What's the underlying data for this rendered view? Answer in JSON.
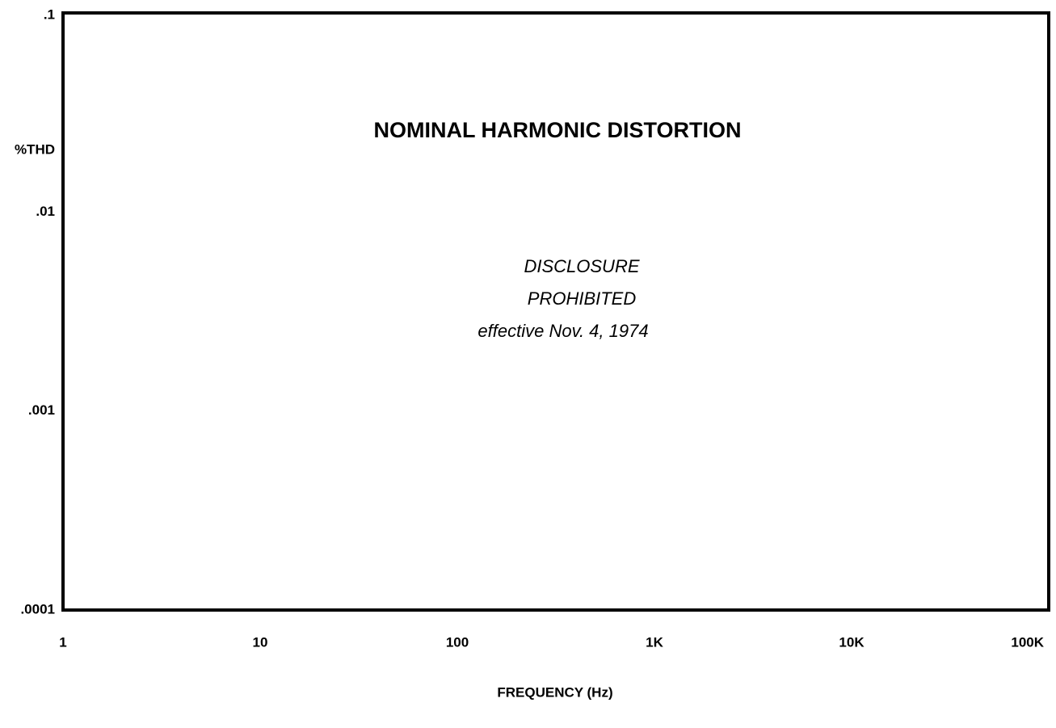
{
  "chart_data": {
    "type": "line",
    "title": "NOMINAL HARMONIC DISTORTION",
    "annotations": [
      "DISCLOSURE",
      "PROHIBITED",
      "effective Nov. 4, 1974"
    ],
    "xlabel": "FREQUENCY (Hz)",
    "ylabel": "%THD",
    "xscale": "log",
    "yscale": "log",
    "xlim": [
      1,
      100000
    ],
    "ylim": [
      0.0001,
      0.1
    ],
    "xticks": [
      1,
      10,
      100,
      {
        "value": 1000,
        "label": "1K"
      },
      {
        "value": 10000,
        "label": "10K"
      },
      {
        "value": 100000,
        "label": "100K"
      }
    ],
    "yticks": [
      {
        "value": 0.1,
        "label": ".1"
      },
      {
        "value": 0.01,
        "label": ".01"
      },
      {
        "value": 0.001,
        "label": ".001"
      },
      {
        "value": 0.0001,
        "label": ".0001"
      }
    ],
    "grid": false
  }
}
